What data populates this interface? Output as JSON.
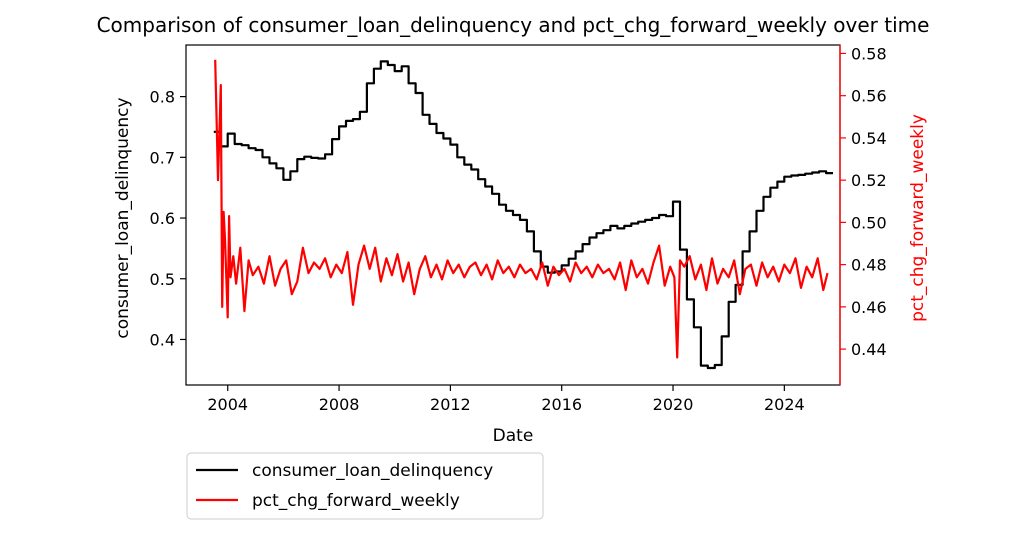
{
  "chart_data": {
    "type": "line",
    "title": "Comparison of consumer_loan_delinquency and pct_chg_forward_weekly over time",
    "xlabel": "Date",
    "ylabel_left": "consumer_loan_delinquency",
    "ylabel_right": "pct_chg_forward_weekly",
    "x_ticks": [
      "2004",
      "2008",
      "2012",
      "2016",
      "2020",
      "2024"
    ],
    "y_left_ticks": [
      "0.4",
      "0.5",
      "0.6",
      "0.7",
      "0.8"
    ],
    "y_right_ticks": [
      "0.44",
      "0.46",
      "0.48",
      "0.50",
      "0.52",
      "0.54",
      "0.56",
      "0.58"
    ],
    "xlim": [
      2002.5,
      2026.0
    ],
    "ylim_left": [
      0.325,
      0.885
    ],
    "ylim_right": [
      0.423,
      0.584
    ],
    "legend_position": "below-left",
    "series": [
      {
        "name": "consumer_loan_delinquency",
        "axis": "left",
        "color": "#000000",
        "style": "step",
        "x": [
          2003.5,
          2003.75,
          2004.0,
          2004.25,
          2004.5,
          2004.75,
          2005.0,
          2005.25,
          2005.5,
          2005.75,
          2006.0,
          2006.25,
          2006.5,
          2006.75,
          2007.0,
          2007.25,
          2007.5,
          2007.75,
          2008.0,
          2008.25,
          2008.5,
          2008.75,
          2009.0,
          2009.25,
          2009.5,
          2009.75,
          2010.0,
          2010.25,
          2010.5,
          2010.75,
          2011.0,
          2011.25,
          2011.5,
          2011.75,
          2012.0,
          2012.25,
          2012.5,
          2012.75,
          2013.0,
          2013.25,
          2013.5,
          2013.75,
          2014.0,
          2014.25,
          2014.5,
          2014.75,
          2015.0,
          2015.25,
          2015.5,
          2015.75,
          2016.0,
          2016.25,
          2016.5,
          2016.75,
          2017.0,
          2017.25,
          2017.5,
          2017.75,
          2018.0,
          2018.25,
          2018.5,
          2018.75,
          2019.0,
          2019.25,
          2019.5,
          2019.75,
          2020.0,
          2020.25,
          2020.5,
          2020.75,
          2021.0,
          2021.25,
          2021.5,
          2021.75,
          2022.0,
          2022.25,
          2022.5,
          2022.75,
          2023.0,
          2023.25,
          2023.5,
          2023.75,
          2024.0,
          2024.25,
          2024.5,
          2024.75,
          2025.0,
          2025.25,
          2025.5
        ],
        "values": [
          0.742,
          0.718,
          0.739,
          0.722,
          0.72,
          0.715,
          0.712,
          0.7,
          0.69,
          0.682,
          0.663,
          0.677,
          0.697,
          0.701,
          0.699,
          0.698,
          0.705,
          0.73,
          0.751,
          0.76,
          0.763,
          0.775,
          0.822,
          0.846,
          0.858,
          0.852,
          0.842,
          0.85,
          0.822,
          0.806,
          0.77,
          0.755,
          0.74,
          0.731,
          0.721,
          0.7,
          0.688,
          0.68,
          0.664,
          0.652,
          0.64,
          0.622,
          0.612,
          0.605,
          0.597,
          0.578,
          0.545,
          0.52,
          0.51,
          0.512,
          0.522,
          0.533,
          0.545,
          0.557,
          0.568,
          0.575,
          0.58,
          0.587,
          0.583,
          0.587,
          0.591,
          0.594,
          0.597,
          0.6,
          0.605,
          0.603,
          0.627,
          0.548,
          0.466,
          0.42,
          0.357,
          0.353,
          0.358,
          0.405,
          0.462,
          0.49,
          0.545,
          0.578,
          0.612,
          0.635,
          0.65,
          0.66,
          0.668,
          0.67,
          0.671,
          0.673,
          0.675,
          0.677,
          0.674
        ]
      },
      {
        "name": "pct_chg_forward_weekly",
        "axis": "right",
        "color": "#ff0000",
        "style": "line",
        "x": [
          2003.55,
          2003.65,
          2003.75,
          2003.8,
          2003.85,
          2003.9,
          2004.0,
          2004.05,
          2004.1,
          2004.2,
          2004.3,
          2004.45,
          2004.6,
          2004.75,
          2004.9,
          2005.1,
          2005.3,
          2005.5,
          2005.7,
          2005.9,
          2006.1,
          2006.3,
          2006.5,
          2006.7,
          2006.9,
          2007.1,
          2007.3,
          2007.5,
          2007.7,
          2007.9,
          2008.1,
          2008.3,
          2008.5,
          2008.7,
          2008.9,
          2009.1,
          2009.3,
          2009.5,
          2009.7,
          2009.9,
          2010.1,
          2010.3,
          2010.5,
          2010.7,
          2010.9,
          2011.1,
          2011.3,
          2011.5,
          2011.7,
          2011.9,
          2012.1,
          2012.3,
          2012.5,
          2012.7,
          2012.9,
          2013.1,
          2013.3,
          2013.5,
          2013.7,
          2013.9,
          2014.1,
          2014.3,
          2014.5,
          2014.7,
          2014.9,
          2015.1,
          2015.3,
          2015.5,
          2015.7,
          2015.9,
          2016.1,
          2016.3,
          2016.5,
          2016.7,
          2016.9,
          2017.1,
          2017.3,
          2017.5,
          2017.7,
          2017.9,
          2018.1,
          2018.3,
          2018.5,
          2018.7,
          2018.9,
          2019.1,
          2019.3,
          2019.5,
          2019.7,
          2019.9,
          2020.05,
          2020.15,
          2020.25,
          2020.4,
          2020.6,
          2020.8,
          2021.0,
          2021.2,
          2021.4,
          2021.6,
          2021.8,
          2022.0,
          2022.2,
          2022.4,
          2022.6,
          2022.8,
          2023.0,
          2023.2,
          2023.4,
          2023.6,
          2023.8,
          2024.0,
          2024.2,
          2024.4,
          2024.6,
          2024.8,
          2025.0,
          2025.2,
          2025.4,
          2025.55
        ],
        "values": [
          0.577,
          0.52,
          0.565,
          0.46,
          0.505,
          0.492,
          0.455,
          0.503,
          0.474,
          0.484,
          0.471,
          0.488,
          0.458,
          0.482,
          0.475,
          0.479,
          0.471,
          0.484,
          0.47,
          0.478,
          0.482,
          0.466,
          0.472,
          0.488,
          0.476,
          0.481,
          0.478,
          0.483,
          0.474,
          0.48,
          0.476,
          0.486,
          0.461,
          0.48,
          0.489,
          0.478,
          0.488,
          0.472,
          0.483,
          0.475,
          0.485,
          0.472,
          0.481,
          0.466,
          0.478,
          0.484,
          0.474,
          0.48,
          0.473,
          0.482,
          0.476,
          0.48,
          0.474,
          0.479,
          0.481,
          0.475,
          0.48,
          0.473,
          0.482,
          0.476,
          0.479,
          0.474,
          0.48,
          0.476,
          0.478,
          0.473,
          0.481,
          0.47,
          0.479,
          0.475,
          0.478,
          0.472,
          0.481,
          0.476,
          0.479,
          0.474,
          0.48,
          0.476,
          0.478,
          0.473,
          0.481,
          0.468,
          0.482,
          0.474,
          0.478,
          0.471,
          0.481,
          0.489,
          0.47,
          0.479,
          0.474,
          0.436,
          0.482,
          0.479,
          0.484,
          0.473,
          0.48,
          0.468,
          0.483,
          0.471,
          0.478,
          0.474,
          0.482,
          0.466,
          0.478,
          0.48,
          0.47,
          0.481,
          0.474,
          0.479,
          0.472,
          0.48,
          0.476,
          0.483,
          0.469,
          0.479,
          0.474,
          0.483,
          0.468,
          0.476
        ]
      }
    ]
  }
}
